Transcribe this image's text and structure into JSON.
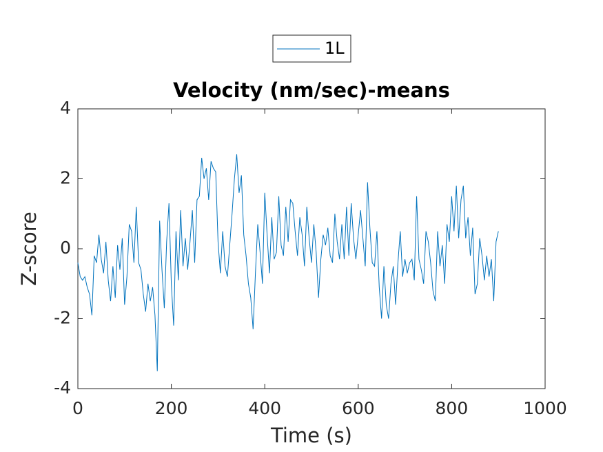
{
  "chart_data": {
    "type": "line",
    "title": "Velocity (nm/sec)-means",
    "xlabel": "Time (s)",
    "ylabel": "Z-score",
    "x": [
      0,
      5,
      10,
      15,
      20,
      25,
      30,
      35,
      40,
      45,
      50,
      55,
      60,
      65,
      70,
      75,
      80,
      85,
      90,
      95,
      100,
      105,
      110,
      115,
      120,
      125,
      130,
      135,
      140,
      145,
      150,
      155,
      160,
      165,
      170,
      175,
      180,
      185,
      190,
      195,
      200,
      205,
      210,
      215,
      220,
      225,
      230,
      235,
      240,
      245,
      250,
      255,
      260,
      265,
      270,
      275,
      280,
      285,
      290,
      295,
      300,
      305,
      310,
      315,
      320,
      325,
      330,
      335,
      340,
      345,
      350,
      355,
      360,
      365,
      370,
      375,
      380,
      385,
      390,
      395,
      400,
      405,
      410,
      415,
      420,
      425,
      430,
      435,
      440,
      445,
      450,
      455,
      460,
      465,
      470,
      475,
      480,
      485,
      490,
      495,
      500,
      505,
      510,
      515,
      520,
      525,
      530,
      535,
      540,
      545,
      550,
      555,
      560,
      565,
      570,
      575,
      580,
      585,
      590,
      595,
      600,
      605,
      610,
      615,
      620,
      625,
      630,
      635,
      640,
      645,
      650,
      655,
      660,
      665,
      670,
      675,
      680,
      685,
      690,
      695,
      700,
      705,
      710,
      715,
      720,
      725,
      730,
      735,
      740,
      745,
      750,
      755,
      760,
      765,
      770,
      775,
      780,
      785,
      790,
      795,
      800,
      805,
      810,
      815,
      820,
      825,
      830,
      835,
      840,
      845,
      850,
      855,
      860,
      865,
      870,
      875,
      880,
      885,
      890,
      895,
      900
    ],
    "series": [
      {
        "name": "1L",
        "color": "#0072bd",
        "values": [
          -0.4,
          -0.8,
          -0.9,
          -0.8,
          -1.1,
          -1.3,
          -1.9,
          -0.2,
          -0.4,
          0.4,
          -0.3,
          -0.7,
          0.2,
          -0.9,
          -1.5,
          -0.5,
          -1.4,
          0.1,
          -0.6,
          0.3,
          -1.6,
          -0.8,
          0.7,
          0.5,
          -0.4,
          1.2,
          -0.4,
          -0.6,
          -1.3,
          -1.8,
          -1.0,
          -1.5,
          -1.1,
          -1.9,
          -3.5,
          0.8,
          -0.6,
          -1.7,
          0.2,
          1.3,
          -1.0,
          -2.2,
          0.5,
          -0.9,
          1.1,
          -0.5,
          0.3,
          -0.6,
          0.2,
          1.1,
          -0.4,
          1.4,
          1.5,
          2.6,
          2.0,
          2.3,
          1.4,
          2.5,
          2.3,
          2.2,
          0.2,
          -0.7,
          0.5,
          -0.5,
          -0.8,
          0.1,
          1.0,
          2.0,
          2.7,
          1.6,
          2.1,
          0.4,
          -0.2,
          -1.0,
          -1.4,
          -2.3,
          -0.7,
          0.7,
          -0.1,
          -1.0,
          1.6,
          0.4,
          -0.7,
          0.9,
          -0.3,
          -0.1,
          1.5,
          0.1,
          -0.2,
          1.2,
          0.2,
          1.4,
          1.3,
          0.5,
          -0.2,
          0.9,
          0.4,
          -0.5,
          1.2,
          0.3,
          -0.4,
          0.7,
          -0.1,
          -1.4,
          -0.3,
          0.4,
          0.1,
          0.6,
          -0.2,
          -0.4,
          1.0,
          0.2,
          -0.3,
          0.7,
          -0.3,
          1.2,
          -0.2,
          1.3,
          0.3,
          -0.3,
          0.4,
          1.1,
          0.3,
          -0.5,
          1.9,
          0.6,
          -0.4,
          -0.5,
          0.5,
          -1.1,
          -2.0,
          -0.5,
          -1.6,
          -2.0,
          -1.0,
          -0.5,
          -1.6,
          -0.4,
          0.5,
          -0.8,
          -0.3,
          -0.7,
          -0.4,
          -0.3,
          -0.9,
          1.5,
          -0.3,
          -0.6,
          -1.0,
          0.5,
          0.2,
          -0.4,
          -1.2,
          -1.5,
          0.5,
          -0.5,
          0.1,
          -1.0,
          0.7,
          0.2,
          1.5,
          0.5,
          1.8,
          0.3,
          1.4,
          1.8,
          0.3,
          0.9,
          -0.2,
          0.6,
          -1.3,
          -1.0,
          0.3,
          -0.2,
          -0.9,
          -0.2,
          -0.8,
          -0.3,
          -1.5,
          0.2,
          0.5
        ]
      }
    ],
    "xlim": [
      0,
      1000
    ],
    "xticks": [
      0,
      200,
      400,
      600,
      800,
      1000
    ],
    "ylim": [
      -4,
      4
    ],
    "yticks": [
      -4,
      -2,
      0,
      2,
      4
    ],
    "grid": false,
    "legend": "top"
  }
}
